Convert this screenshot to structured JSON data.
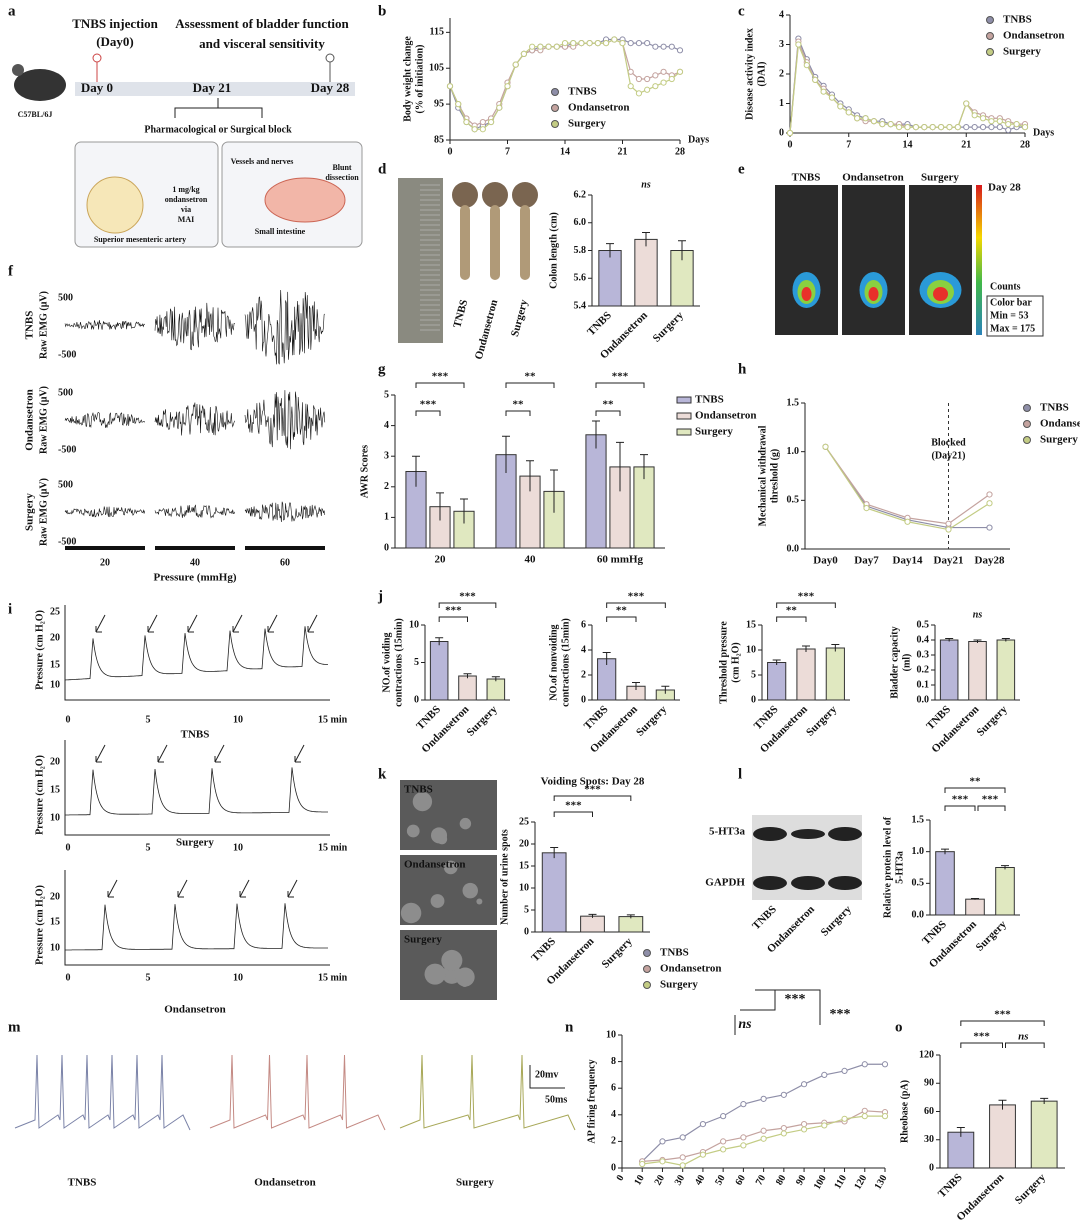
{
  "chart_data": [
    {
      "type": "line",
      "ylabel": [
        "Body weight change",
        "(% of initiation)"
      ],
      "xlabel": "Days",
      "x": [
        0,
        1,
        2,
        3,
        4,
        5,
        6,
        7,
        8,
        9,
        10,
        11,
        12,
        13,
        14,
        15,
        16,
        17,
        18,
        19,
        20,
        21,
        22,
        23,
        24,
        25,
        26,
        27,
        28
      ],
      "xlim": [
        0,
        28
      ],
      "xticks": [
        0,
        7,
        14,
        21,
        28
      ],
      "ylim": [
        85,
        119
      ],
      "yticks": [
        85,
        95,
        105,
        115
      ],
      "legend": "lower right",
      "series": [
        {
          "name": "TNBS",
          "color": "#8e8ea8",
          "values": [
            100,
            94,
            90,
            88,
            89,
            90,
            94,
            100,
            106,
            109,
            110,
            111,
            111,
            111,
            111,
            112,
            112,
            112,
            112,
            113,
            113,
            113,
            112,
            112,
            112,
            111,
            111,
            111,
            110
          ]
        },
        {
          "name": "Ondansetron",
          "color": "#c4a39f",
          "values": [
            100,
            95,
            91,
            89,
            90,
            91,
            95,
            101,
            106,
            109,
            110,
            110,
            111,
            111,
            111,
            111,
            112,
            112,
            112,
            112,
            113,
            112,
            104,
            102,
            102,
            103,
            104,
            103,
            104
          ]
        },
        {
          "name": "Surgery",
          "color": "#c3cc84",
          "values": [
            100,
            95,
            90,
            88,
            88,
            90,
            94,
            100,
            106,
            109,
            111,
            111,
            111,
            111,
            112,
            112,
            112,
            112,
            112,
            112,
            113,
            112,
            100,
            98,
            99,
            100,
            101,
            102,
            104
          ]
        }
      ]
    },
    {
      "type": "line",
      "ylabel": [
        "Disease activity index",
        "(DAI)"
      ],
      "xlabel": "Days",
      "x": [
        0,
        1,
        2,
        3,
        4,
        5,
        6,
        7,
        8,
        9,
        10,
        11,
        12,
        13,
        14,
        15,
        16,
        17,
        18,
        19,
        20,
        21,
        22,
        23,
        24,
        25,
        26,
        27,
        28
      ],
      "xlim": [
        0,
        28
      ],
      "xticks": [
        0,
        7,
        14,
        21,
        28
      ],
      "ylim": [
        0,
        4
      ],
      "yticks": [
        0,
        1,
        2,
        3,
        4
      ],
      "legend": "upper right",
      "series": [
        {
          "name": "TNBS",
          "color": "#8e8ea8",
          "values": [
            0,
            3.2,
            2.5,
            1.9,
            1.6,
            1.3,
            1.0,
            0.8,
            0.6,
            0.5,
            0.4,
            0.4,
            0.3,
            0.3,
            0.3,
            0.2,
            0.2,
            0.2,
            0.2,
            0.2,
            0.2,
            0.2,
            0.2,
            0.2,
            0.2,
            0.2,
            0.1,
            0.2,
            0.2
          ]
        },
        {
          "name": "Ondansetron",
          "color": "#c4a39f",
          "values": [
            0,
            3.1,
            2.4,
            1.8,
            1.5,
            1.2,
            0.9,
            0.7,
            0.5,
            0.4,
            0.4,
            0.3,
            0.3,
            0.3,
            0.2,
            0.2,
            0.2,
            0.2,
            0.2,
            0.2,
            0.2,
            1.0,
            0.7,
            0.6,
            0.5,
            0.5,
            0.4,
            0.3,
            0.3
          ]
        },
        {
          "name": "Surgery",
          "color": "#c3cc84",
          "values": [
            0,
            3.0,
            2.3,
            1.8,
            1.4,
            1.2,
            0.9,
            0.7,
            0.5,
            0.5,
            0.4,
            0.3,
            0.3,
            0.2,
            0.2,
            0.2,
            0.2,
            0.2,
            0.2,
            0.2,
            0.2,
            1.0,
            0.6,
            0.5,
            0.4,
            0.4,
            0.3,
            0.3,
            0.2
          ]
        }
      ]
    },
    {
      "type": "bar",
      "ylabel": [
        "Colon length (cm)"
      ],
      "categories": [
        "TNBS",
        "Ondansetron",
        "Surgery"
      ],
      "values": [
        5.8,
        5.88,
        5.8
      ],
      "errors": [
        0.05,
        0.05,
        0.07
      ],
      "colors": [
        "#b8b6d8",
        "#ecdcd8",
        "#e0e8c0"
      ],
      "ylim": [
        5.4,
        6.2
      ],
      "yticks": [
        5.4,
        5.6,
        5.8,
        {
          "value": 6,
          "label": "6.0"
        },
        6.2
      ],
      "significance": [
        "ns"
      ]
    },
    {
      "type": "bar",
      "ylabel": [
        "AWR Scores"
      ],
      "categories": [
        "20",
        "40",
        "60 mmHg"
      ],
      "ylim": [
        0,
        5
      ],
      "yticks": [
        0,
        1,
        2,
        3,
        4,
        5
      ],
      "legend": "right",
      "series": [
        {
          "name": "TNBS",
          "color": "#b8b6d8",
          "values": [
            2.5,
            3.05,
            3.7
          ],
          "errors": [
            0.5,
            0.6,
            0.45
          ]
        },
        {
          "name": "Ondansetron",
          "color": "#ecdcd8",
          "values": [
            1.35,
            2.35,
            2.65
          ],
          "errors": [
            0.45,
            0.5,
            0.8
          ]
        },
        {
          "name": "Surgery",
          "color": "#e0e8c0",
          "values": [
            1.2,
            1.85,
            2.65
          ],
          "errors": [
            0.4,
            0.7,
            0.4
          ]
        }
      ],
      "significance": [
        "***",
        "***",
        "**",
        "**",
        "***",
        "**"
      ]
    },
    {
      "type": "line",
      "ylabel": [
        "Mechanical withdrawal",
        "threshold (g)"
      ],
      "categories": [
        "Day0",
        "Day7",
        "Day14",
        "Day21",
        "Day28"
      ],
      "ylim": [
        0,
        1.5
      ],
      "yticks": [
        {
          "value": 0,
          "label": "0.0"
        },
        0.5,
        {
          "value": 1,
          "label": "1.0"
        },
        1.5
      ],
      "annotation": [
        "Blocked",
        "(Day21)"
      ],
      "legend": "right",
      "series": [
        {
          "name": "TNBS",
          "color": "#8e8ea8",
          "values": [
            1.05,
            0.44,
            0.3,
            0.22,
            0.22
          ]
        },
        {
          "name": "Ondansetron",
          "color": "#c4a39f",
          "values": [
            1.05,
            0.46,
            0.32,
            0.26,
            0.56
          ]
        },
        {
          "name": "Surgery",
          "color": "#c3cc84",
          "values": [
            1.05,
            0.42,
            0.28,
            0.2,
            0.47
          ]
        }
      ]
    },
    {
      "type": "bar",
      "ylabel": [
        "NO.of voiding",
        "contractions (15min)"
      ],
      "categories": [
        "TNBS",
        "Ondansetron",
        "Surgery"
      ],
      "values": [
        7.8,
        3.2,
        2.8
      ],
      "errors": [
        0.5,
        0.3,
        0.3
      ],
      "colors": [
        "#b8b6d8",
        "#ecdcd8",
        "#e0e8c0"
      ],
      "ylim": [
        0,
        10
      ],
      "yticks": [
        0,
        5,
        10
      ],
      "significance": [
        "***",
        "***"
      ]
    },
    {
      "type": "bar",
      "ylabel": [
        "NO.of nonvoiding",
        "contractions (15min)"
      ],
      "categories": [
        "TNBS",
        "Ondansetron",
        "Surgery"
      ],
      "values": [
        3.3,
        1.1,
        0.8
      ],
      "errors": [
        0.5,
        0.3,
        0.3
      ],
      "colors": [
        "#b8b6d8",
        "#ecdcd8",
        "#e0e8c0"
      ],
      "ylim": [
        0,
        6
      ],
      "yticks": [
        0,
        2,
        4,
        6
      ],
      "significance": [
        "***",
        "**"
      ]
    },
    {
      "type": "bar",
      "ylabel": [
        "Threshold pressure",
        "(cm H₂O)"
      ],
      "categories": [
        "TNBS",
        "Ondansetron",
        "Surgery"
      ],
      "values": [
        7.5,
        10.2,
        10.4
      ],
      "errors": [
        0.5,
        0.6,
        0.7
      ],
      "colors": [
        "#b8b6d8",
        "#ecdcd8",
        "#e0e8c0"
      ],
      "ylim": [
        0,
        15
      ],
      "yticks": [
        0,
        5,
        10,
        15
      ],
      "significance": [
        "***",
        "**"
      ]
    },
    {
      "type": "bar",
      "ylabel": [
        "Bladder capacity",
        "(ml)"
      ],
      "categories": [
        "TNBS",
        "Ondansetron",
        "Surgery"
      ],
      "values": [
        0.4,
        0.39,
        0.4
      ],
      "errors": [
        0.01,
        0.01,
        0.01
      ],
      "colors": [
        "#b8b6d8",
        "#ecdcd8",
        "#e0e8c0"
      ],
      "ylim": [
        0,
        0.5
      ],
      "yticks": [
        {
          "value": 0,
          "label": "0.0"
        },
        0.1,
        0.2,
        0.3,
        0.4,
        0.5
      ],
      "significance": [
        "ns"
      ]
    },
    {
      "type": "bar",
      "title": "Voiding Spots: Day 28",
      "ylabel": [
        "Number of urine spots"
      ],
      "categories": [
        "TNBS",
        "Ondansetron",
        "Surgery"
      ],
      "values": [
        18,
        3.6,
        3.5
      ],
      "errors": [
        1.2,
        0.4,
        0.4
      ],
      "colors": [
        "#b8b6d8",
        "#ecdcd8",
        "#e0e8c0"
      ],
      "ylim": [
        0,
        25
      ],
      "yticks": [
        0,
        5,
        10,
        15,
        20,
        25
      ],
      "significance": [
        "***",
        "***"
      ]
    },
    {
      "type": "bar",
      "ylabel": [
        "Relative protein level of",
        "5-HT3a"
      ],
      "categories": [
        "TNBS",
        "Ondansetron",
        "Surgery"
      ],
      "values": [
        1.0,
        0.25,
        0.75
      ],
      "errors": [
        0.04,
        0.01,
        0.03
      ],
      "colors": [
        "#b8b6d8",
        "#ecdcd8",
        "#e0e8c0"
      ],
      "ylim": [
        0,
        1.5
      ],
      "yticks": [
        {
          "value": 0,
          "label": "0.0"
        },
        0.5,
        {
          "value": 1,
          "label": "1.0"
        },
        1.5
      ],
      "significance": [
        "**",
        "***",
        "***"
      ]
    },
    {
      "type": "line",
      "ylabel": [
        "AP firing frequency"
      ],
      "x": [
        10,
        20,
        30,
        40,
        50,
        60,
        70,
        80,
        90,
        100,
        110,
        120,
        130
      ],
      "xlim": [
        0,
        130
      ],
      "xticks": [
        0,
        10,
        20,
        30,
        40,
        50,
        60,
        70,
        80,
        90,
        100,
        110,
        120,
        130
      ],
      "ylim": [
        0,
        10
      ],
      "yticks": [
        0,
        2,
        4,
        6,
        8,
        10
      ],
      "legend": "top",
      "series": [
        {
          "name": "TNBS",
          "color": "#8e8ea8",
          "values": [
            0.5,
            2.0,
            2.3,
            3.3,
            3.9,
            4.8,
            5.2,
            5.5,
            6.3,
            7.0,
            7.3,
            7.8,
            7.8
          ]
        },
        {
          "name": "Ondansetron",
          "color": "#c4a39f",
          "values": [
            0.5,
            0.6,
            0.8,
            1.2,
            2.0,
            2.3,
            2.8,
            3.0,
            3.3,
            3.4,
            3.5,
            4.3,
            4.2
          ]
        },
        {
          "name": "Surgery",
          "color": "#c3cc84",
          "values": [
            0.3,
            0.5,
            0.2,
            1.0,
            1.4,
            1.7,
            2.2,
            2.6,
            2.9,
            3.2,
            3.7,
            3.9,
            3.9
          ]
        }
      ],
      "significance": [
        "***",
        "***",
        "ns"
      ]
    },
    {
      "type": "bar",
      "ylabel": [
        "Rheobase (pA)"
      ],
      "categories": [
        "TNBS",
        "Ondansetron",
        "Surgery"
      ],
      "values": [
        38,
        67,
        71
      ],
      "errors": [
        5,
        5,
        3
      ],
      "colors": [
        "#b8b6d8",
        "#ecdcd8",
        "#e0e8c0"
      ],
      "ylim": [
        0,
        120
      ],
      "yticks": [
        0,
        30,
        60,
        90,
        120
      ],
      "significance": [
        "***",
        "***",
        "ns"
      ]
    }
  ],
  "figure": {
    "panel_labels": [
      "a",
      "b",
      "c",
      "d",
      "e",
      "f",
      "g",
      "h",
      "i",
      "j",
      "k",
      "l",
      "m",
      "n",
      "o"
    ],
    "a": {
      "injection": [
        "TNBS injection",
        "(Day0)"
      ],
      "assessment": [
        "Assessment of bladder function",
        "and visceral sensitivity"
      ],
      "days": [
        "Day 0",
        "Day 21",
        "Day 28"
      ],
      "strain": "C57BL/6J",
      "block": "Pharmacological or Surgical block",
      "pharm": [
        "1 mg/kg",
        "ondansetron",
        "via",
        "MAI"
      ],
      "artery": "Superior mesenteric artery",
      "vessels": "Vessels and nerves",
      "blunt": [
        "Blunt",
        "dissection"
      ],
      "intestine": "Small intestine"
    },
    "d": {
      "labels": [
        "TNBS",
        "Ondansetron",
        "Surgery"
      ]
    },
    "e": {
      "labels": [
        "TNBS",
        "Ondansetron",
        "Surgery"
      ],
      "scale_top": "Day 28",
      "counts": "Counts",
      "colorbar": [
        "Color bar",
        "Min = 53",
        "Max = 175"
      ]
    },
    "f": {
      "rows": [
        "TNBS",
        "Ondansetron",
        "Surgery"
      ],
      "ylabel": "Raw EMG (μV)",
      "scale": [
        "500",
        "-500"
      ],
      "pressures": [
        "20",
        "40",
        "60"
      ],
      "xlabel": "Pressure (mmHg)"
    },
    "i": {
      "traces": [
        "TNBS",
        "Surgery",
        "Ondansetron"
      ],
      "ylabel": "Pressure (cm H₂O)",
      "yticks": [
        "10",
        "15",
        "20",
        "25"
      ],
      "xticks": [
        "0",
        "5",
        "10",
        "15 min"
      ]
    },
    "k": {
      "labels": [
        "TNBS",
        "Ondansetron",
        "Surgery"
      ]
    },
    "l": {
      "bands": [
        "5-HT3a",
        "GAPDH"
      ],
      "lanes": [
        "TNBS",
        "Ondansetron",
        "Surgery"
      ]
    },
    "m": {
      "labels": [
        "TNBS",
        "Ondansetron",
        "Surgery"
      ],
      "scale": [
        "20mv",
        "50ms"
      ]
    }
  }
}
